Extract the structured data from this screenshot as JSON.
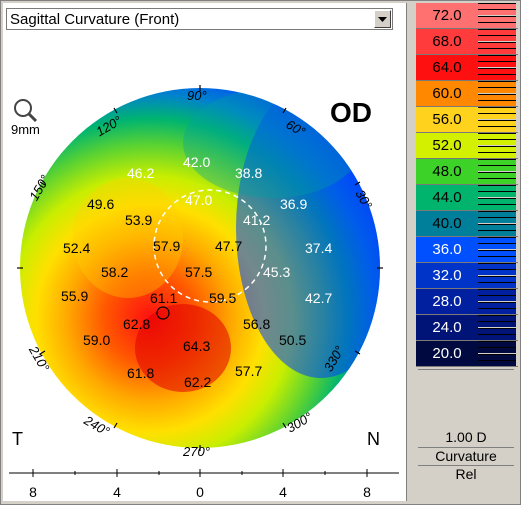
{
  "map": {
    "view_selector": "Sagittal Curvature (Front)",
    "eye_label": "OD",
    "zoom_label": "9mm",
    "temporal_label": "T",
    "nasal_label": "N",
    "axis_labels": [
      "90°",
      "60°",
      "30°",
      "330°",
      "300°",
      "270°",
      "240°",
      "210°",
      "150°",
      "120°"
    ],
    "x_axis_ticks": [
      "8",
      "4",
      "0",
      "4",
      "8"
    ],
    "values": [
      "42.0",
      "46.2",
      "38.8",
      "49.6",
      "47.0",
      "36.9",
      "53.9",
      "41.2",
      "52.4",
      "57.9",
      "47.7",
      "37.4",
      "58.2",
      "57.5",
      "45.3",
      "55.9",
      "61.1",
      "59.5",
      "42.7",
      "62.8",
      "56.8",
      "59.0",
      "64.3",
      "50.5",
      "61.8",
      "62.2",
      "57.7"
    ]
  },
  "scale": {
    "steps": [
      {
        "value": "72.0",
        "color": "#ff7070",
        "text": "#000000"
      },
      {
        "value": "68.0",
        "color": "#ff3b3b",
        "text": "#000000"
      },
      {
        "value": "64.0",
        "color": "#ff1010",
        "text": "#000000"
      },
      {
        "value": "60.0",
        "color": "#ff8800",
        "text": "#000000"
      },
      {
        "value": "56.0",
        "color": "#ffd21e",
        "text": "#000000"
      },
      {
        "value": "52.0",
        "color": "#d2f000",
        "text": "#000000"
      },
      {
        "value": "48.0",
        "color": "#3cd228",
        "text": "#000000"
      },
      {
        "value": "44.0",
        "color": "#00b46e",
        "text": "#000000"
      },
      {
        "value": "40.0",
        "color": "#007f9a",
        "text": "#000000"
      },
      {
        "value": "36.0",
        "color": "#0050ff",
        "text": "#ffffff"
      },
      {
        "value": "32.0",
        "color": "#0034c8",
        "text": "#ffffff"
      },
      {
        "value": "28.0",
        "color": "#0020a0",
        "text": "#ffffff"
      },
      {
        "value": "24.0",
        "color": "#001478",
        "text": "#ffffff"
      },
      {
        "value": "20.0",
        "color": "#000a40",
        "text": "#ffffff"
      }
    ],
    "step_size": "1.00 D",
    "mode": "Curvature",
    "type": "Rel"
  }
}
